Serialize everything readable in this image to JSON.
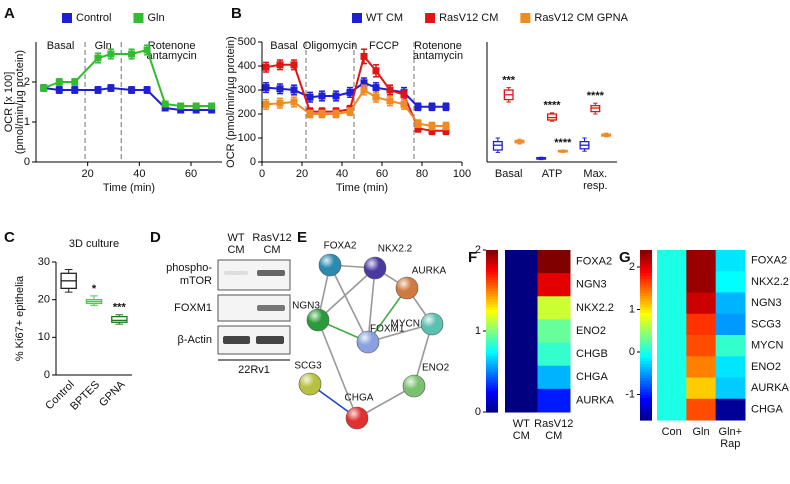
{
  "chart_data": [
    {
      "type": "line",
      "panel_label": "A",
      "x_label": "Time (min)",
      "y_label": [
        "OCR [x 100]",
        "(pmol/min/µg protein)"
      ],
      "x": [
        3,
        9,
        15,
        24,
        29,
        37,
        43,
        50,
        56,
        62,
        68
      ],
      "xlim": [
        0,
        72
      ],
      "xticks": [
        20,
        40,
        60
      ],
      "ylim": [
        0,
        3
      ],
      "yticks": [
        0,
        1,
        2
      ],
      "injections": [
        19,
        33
      ],
      "phase_labels": [
        [
          "Basal"
        ],
        [
          "Gln"
        ],
        [
          "Rotenone",
          "antamycin"
        ]
      ],
      "series": [
        {
          "name": "Control",
          "color": "#1f1fd6",
          "values": [
            1.85,
            1.8,
            1.8,
            1.8,
            1.85,
            1.8,
            1.8,
            1.35,
            1.3,
            1.3,
            1.3
          ],
          "errors": [
            0.08,
            0.08,
            0.08,
            0.08,
            0.08,
            0.08,
            0.08,
            0.06,
            0.06,
            0.06,
            0.06
          ]
        },
        {
          "name": "Gln",
          "color": "#33bb33",
          "values": [
            1.85,
            2.0,
            2.0,
            2.6,
            2.7,
            2.7,
            2.8,
            1.45,
            1.4,
            1.4,
            1.4
          ],
          "errors": [
            0.08,
            0.08,
            0.08,
            0.12,
            0.12,
            0.12,
            0.12,
            0.06,
            0.06,
            0.06,
            0.06
          ]
        }
      ]
    },
    {
      "type": "line",
      "panel_label": "B",
      "x_label": "Time (min)",
      "y_label": "OCR (pmol/min/µg protein)",
      "x": [
        2,
        9,
        16,
        24,
        30,
        37,
        44,
        51,
        57,
        64,
        71,
        78,
        85,
        92
      ],
      "xlim": [
        0,
        100
      ],
      "xticks": [
        0,
        20,
        40,
        60,
        80,
        100
      ],
      "ylim": [
        0,
        500
      ],
      "yticks": [
        0,
        100,
        200,
        300,
        400,
        500
      ],
      "injections": [
        22,
        46,
        76
      ],
      "phase_labels": [
        [
          "Basal"
        ],
        [
          "Oligomycin"
        ],
        [
          "FCCP"
        ],
        [
          "Rotenone",
          "antamycin"
        ]
      ],
      "series": [
        {
          "name": "WT CM",
          "color": "#1f1fd6",
          "values": [
            310,
            305,
            300,
            270,
            275,
            275,
            290,
            330,
            310,
            300,
            290,
            230,
            230,
            230
          ],
          "errors": [
            20,
            20,
            20,
            20,
            20,
            20,
            20,
            20,
            20,
            20,
            20,
            15,
            15,
            15
          ]
        },
        {
          "name": "RasV12 CM",
          "color": "#e01515",
          "values": [
            395,
            405,
            405,
            210,
            210,
            210,
            220,
            440,
            380,
            300,
            280,
            140,
            130,
            130
          ],
          "errors": [
            20,
            20,
            20,
            15,
            15,
            15,
            15,
            30,
            25,
            20,
            20,
            15,
            15,
            15
          ]
        },
        {
          "name": "RasV12 CM GPNA",
          "color": "#f08a24",
          "values": [
            240,
            245,
            250,
            200,
            200,
            200,
            210,
            300,
            270,
            255,
            240,
            160,
            150,
            150
          ],
          "errors": [
            20,
            20,
            20,
            15,
            15,
            15,
            15,
            20,
            20,
            20,
            20,
            15,
            15,
            15
          ]
        }
      ]
    },
    {
      "type": "box",
      "ylim": [
        0,
        500
      ],
      "categories": [
        [
          "Basal"
        ],
        [
          "ATP"
        ],
        [
          "Max.",
          "resp."
        ]
      ],
      "series": [
        {
          "color": "#1f1fd6",
          "boxes": [
            [
              40,
              50,
              70,
              85,
              100
            ],
            [
              10,
              12,
              15,
              18,
              20
            ],
            [
              45,
              55,
              70,
              85,
              100
            ]
          ],
          "sig_labels": [
            null,
            null,
            null
          ]
        },
        {
          "color": "#e01515",
          "boxes": [
            [
              250,
              260,
              280,
              300,
              310
            ],
            [
              170,
              175,
              185,
              200,
              205
            ],
            [
              200,
              210,
              225,
              235,
              245
            ]
          ],
          "sig_labels": [
            "***",
            "****",
            "****"
          ]
        },
        {
          "color": "#f08a24",
          "boxes": [
            [
              75,
              80,
              85,
              90,
              95
            ],
            [
              40,
              42,
              45,
              48,
              50
            ],
            [
              105,
              108,
              112,
              116,
              120
            ]
          ],
          "sig_labels": [
            null,
            "****",
            null
          ]
        }
      ]
    },
    {
      "type": "box",
      "panel_label": "C",
      "title": "3D culture",
      "y_label": "% Ki67+ epithelia",
      "ylim": [
        0,
        30
      ],
      "yticks": [
        0,
        10,
        20,
        30
      ],
      "categories": [
        [
          "Control"
        ],
        [
          "BPTES"
        ],
        [
          "GPNA"
        ]
      ],
      "series": [
        {
          "colors": [
            "#222222",
            "#44cc44",
            "#227722"
          ],
          "boxes": [
            [
              22,
              23,
              25,
              27,
              28
            ],
            [
              18.5,
              19,
              19.5,
              20,
              21
            ],
            [
              13.5,
              14,
              14.5,
              15.5,
              16
            ]
          ],
          "sig_labels": [
            null,
            "*",
            "***"
          ]
        }
      ]
    },
    {
      "type": "heatmap",
      "panel_label": "F",
      "rows": [
        "FOXA2",
        "NGN3",
        "NKX2.2",
        "ENO2",
        "CHGB",
        "CHGA",
        "AURKA"
      ],
      "columns": [
        [
          "WT",
          "CM"
        ],
        [
          "RasV12",
          "CM"
        ]
      ],
      "values": [
        [
          0,
          2.0
        ],
        [
          0,
          1.8
        ],
        [
          0,
          1.15
        ],
        [
          0,
          0.95
        ],
        [
          0,
          0.85
        ],
        [
          0,
          0.6
        ],
        [
          0,
          0.3
        ]
      ],
      "clim": [
        0,
        2
      ],
      "cticks": [
        0,
        1,
        2
      ]
    },
    {
      "type": "heatmap",
      "panel_label": "G",
      "rows": [
        "FOXA2",
        "NKX2.2",
        "NGN3",
        "SCG3",
        "MYCN",
        "ENO2",
        "AURKA",
        "CHGA"
      ],
      "columns": [
        [
          "Con"
        ],
        [
          "Gln"
        ],
        [
          "Gln+",
          "Rap"
        ]
      ],
      "values": [
        [
          0,
          2.3,
          -0.2
        ],
        [
          0,
          2.3,
          -0.1
        ],
        [
          0,
          2.1,
          -0.4
        ],
        [
          0,
          1.7,
          -0.5
        ],
        [
          0,
          1.6,
          0.1
        ],
        [
          0,
          1.4,
          -0.2
        ],
        [
          0,
          1.1,
          -0.3
        ],
        [
          0,
          1.6,
          -1.5
        ]
      ],
      "clim": [
        -1.6,
        2.4
      ],
      "cticks": [
        -1,
        0,
        1,
        2
      ]
    }
  ],
  "blot": {
    "panel_label": "D",
    "lanes": [
      [
        "WT",
        "CM"
      ],
      [
        "RasV12",
        "CM"
      ]
    ],
    "rows": [
      [
        "phospho-",
        "mTOR"
      ],
      [
        "FOXM1"
      ],
      [
        "β-Actin"
      ]
    ],
    "cell_line": "22Rv1"
  },
  "network": {
    "panel_label": "E",
    "nodes": [
      "FOXA2",
      "NKX2.2",
      "AURKA",
      "NGN3",
      "FOXM1",
      "MYCN",
      "SCG3",
      "ENO2",
      "CHGA"
    ]
  }
}
